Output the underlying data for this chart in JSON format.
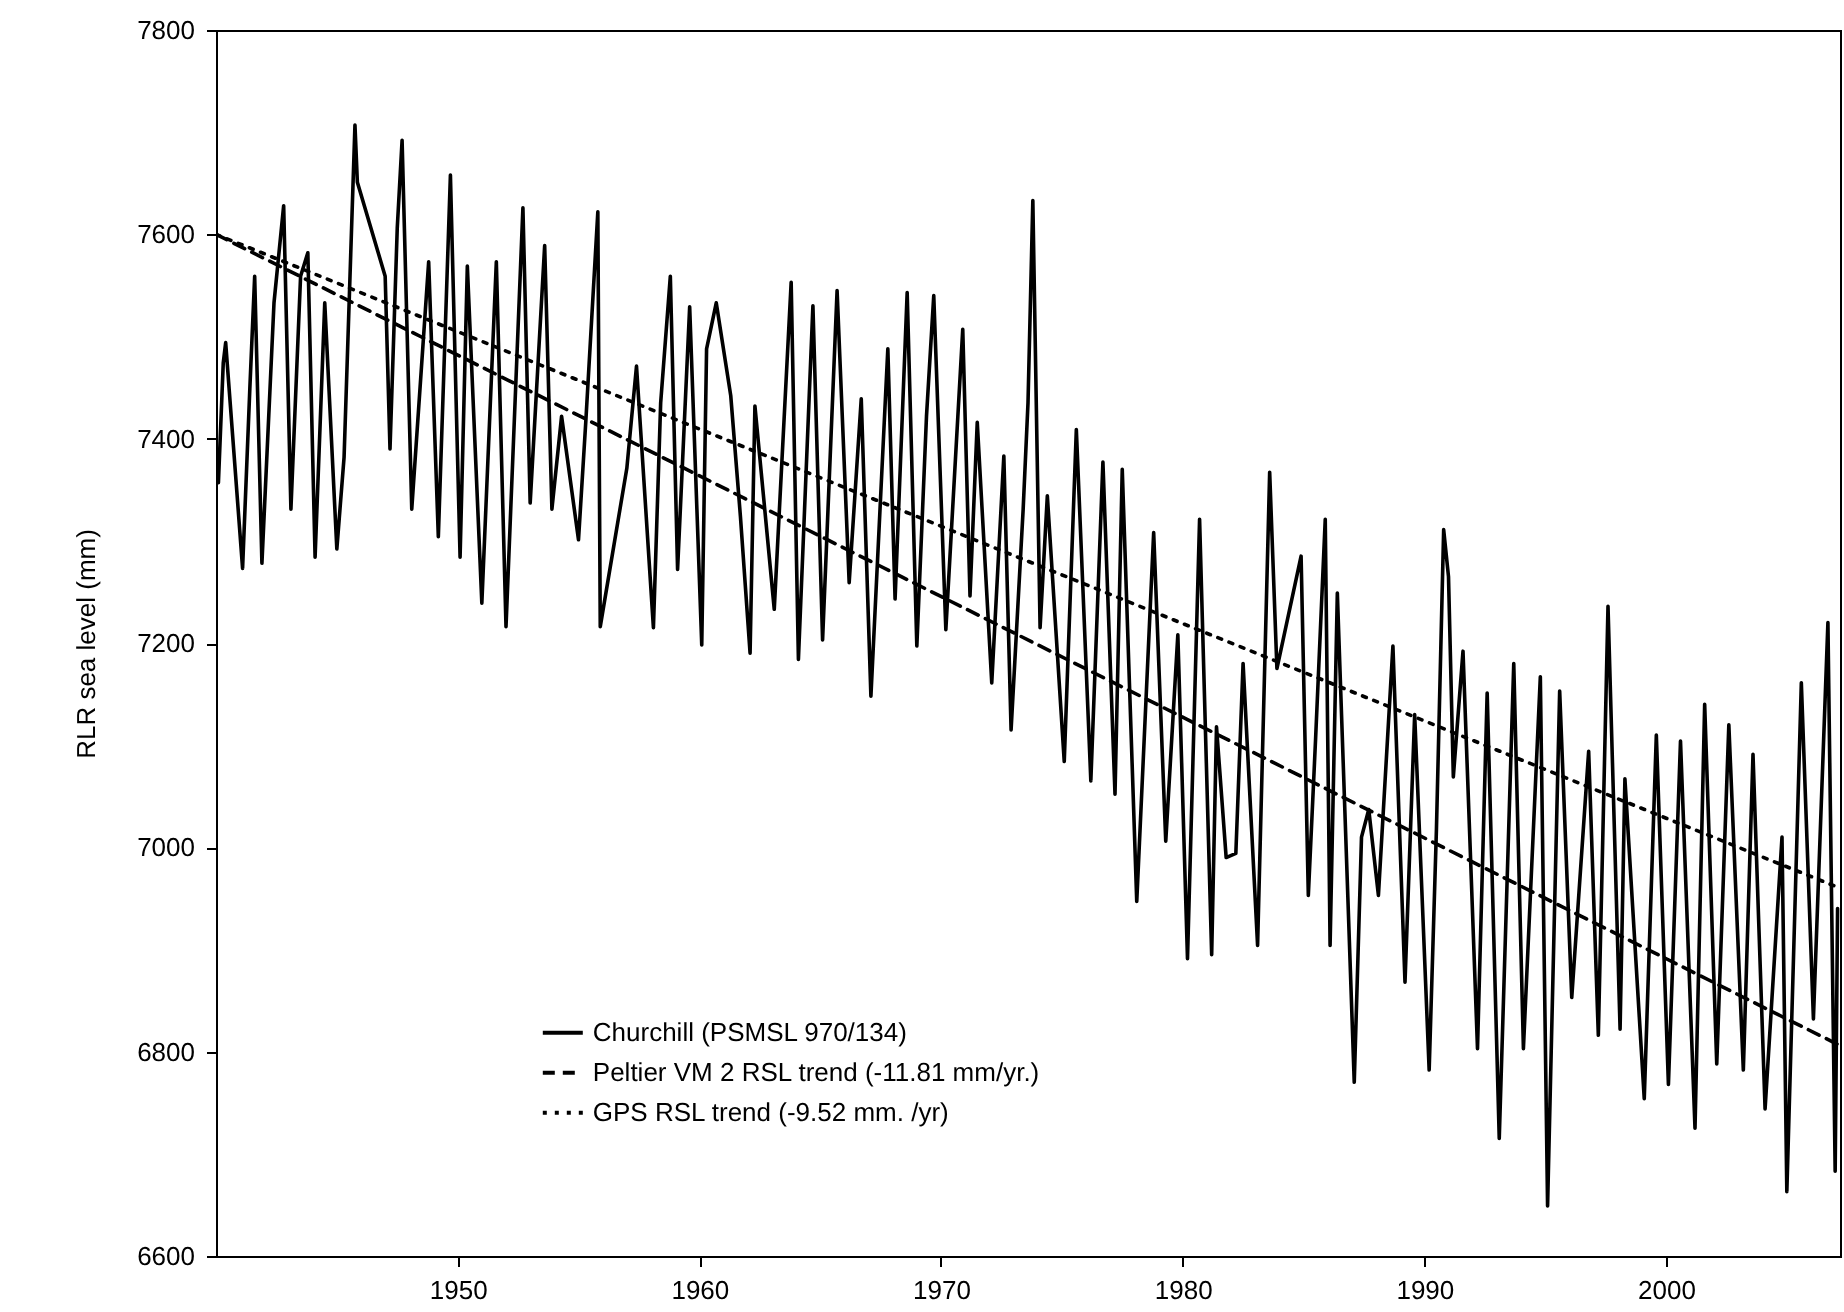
{
  "chart_data": {
    "type": "line",
    "ylabel": "RLR sea level (mm)",
    "xlim": [
      1940,
      2007.2
    ],
    "xticks": [
      1950,
      1960,
      1970,
      1980,
      1990,
      2000
    ],
    "ylim": [
      6600,
      7800
    ],
    "yticks": [
      6600,
      6800,
      7000,
      7200,
      7400,
      7600,
      7800
    ],
    "legend": "bottom",
    "grid": false,
    "series": [
      {
        "name": "Churchill (PSMSL 970/134)",
        "color": "#000000",
        "line_style": "solid",
        "x": [
          1940.1,
          1940.3,
          1940.4,
          1941.1,
          1941.4,
          1941.6,
          1941.9,
          1942.4,
          1942.8,
          1943.1,
          1943.5,
          1943.8,
          1944.1,
          1944.5,
          1945.0,
          1945.3,
          1945.75,
          1945.85,
          1947.0,
          1947.2,
          1947.5,
          1947.7,
          1948.1,
          1948.8,
          1949.2,
          1949.7,
          1950.1,
          1950.4,
          1951.0,
          1951.6,
          1952.0,
          1952.7,
          1953.0,
          1953.6,
          1953.9,
          1954.3,
          1955.0,
          1955.3,
          1955.8,
          1955.9,
          1957.0,
          1957.4,
          1958.1,
          1958.4,
          1958.8,
          1959.1,
          1959.6,
          1960.1,
          1960.3,
          1960.7,
          1961.3,
          1961.7,
          1962.1,
          1962.3,
          1963.1,
          1963.8,
          1964.1,
          1964.7,
          1965.1,
          1965.7,
          1966.2,
          1966.7,
          1967.1,
          1967.8,
          1968.1,
          1968.6,
          1969.0,
          1969.4,
          1969.7,
          1970.2,
          1970.9,
          1971.2,
          1971.5,
          1972.1,
          1972.6,
          1972.9,
          1973.4,
          1973.6,
          1973.8,
          1974.1,
          1974.4,
          1975.1,
          1975.6,
          1976.2,
          1976.7,
          1977.2,
          1977.5,
          1978.1,
          1978.8,
          1979.3,
          1979.8,
          1980.2,
          1980.7,
          1981.2,
          1981.4,
          1981.8,
          1982.2,
          1982.5,
          1983.1,
          1983.6,
          1983.9,
          1984.9,
          1985.2,
          1985.5,
          1985.9,
          1986.1,
          1986.4,
          1987.1,
          1987.4,
          1987.7,
          1988.1,
          1988.7,
          1989.2,
          1989.6,
          1990.2,
          1990.5,
          1990.8,
          1991.0,
          1991.2,
          1991.6,
          1992.2,
          1992.6,
          1993.1,
          1993.7,
          1994.1,
          1994.8,
          1995.1,
          1995.6,
          1996.1,
          1996.8,
          1997.2,
          1997.6,
          1998.1,
          1998.3,
          1999.1,
          1999.6,
          2000.1,
          2000.6,
          2001.2,
          2001.6,
          2002.1,
          2002.6,
          2003.2,
          2003.6,
          2004.1,
          2004.8,
          2005.0,
          2005.6,
          2006.1,
          2006.7,
          2007.0,
          2007.1
        ],
        "values": [
          7357,
          7474,
          7494,
          7273,
          7449,
          7559,
          7278,
          7533,
          7628,
          7331,
          7559,
          7582,
          7284,
          7533,
          7292,
          7382,
          7707,
          7651,
          7559,
          7390,
          7606,
          7692,
          7331,
          7573,
          7304,
          7658,
          7284,
          7569,
          7239,
          7573,
          7216,
          7626,
          7337,
          7589,
          7331,
          7422,
          7301,
          7416,
          7622,
          7216,
          7371,
          7471,
          7215,
          7435,
          7559,
          7272,
          7529,
          7198,
          7488,
          7533,
          7442,
          7324,
          7190,
          7432,
          7233,
          7553,
          7184,
          7530,
          7203,
          7545,
          7259,
          7439,
          7148,
          7488,
          7243,
          7543,
          7197,
          7422,
          7540,
          7213,
          7507,
          7246,
          7416,
          7161,
          7383,
          7115,
          7331,
          7435,
          7633,
          7215,
          7344,
          7084,
          7409,
          7065,
          7377,
          7052,
          7370,
          6947,
          7308,
          7006,
          7208,
          6891,
          7321,
          6895,
          7118,
          6990,
          6994,
          7180,
          6904,
          7367,
          7175,
          7285,
          6953,
          7106,
          7321,
          6904,
          7249,
          6770,
          7010,
          7037,
          6953,
          7197,
          6868,
          7130,
          6782,
          7017,
          7311,
          7265,
          7069,
          7192,
          6803,
          7151,
          6715,
          7180,
          6803,
          7167,
          6649,
          7153,
          6853,
          7094,
          6816,
          7236,
          6822,
          7067,
          6754,
          7110,
          6768,
          7104,
          6725,
          7140,
          6788,
          7120,
          6782,
          7091,
          6744,
          7010,
          6663,
          7161,
          6832,
          7220,
          6683,
          6940
        ]
      },
      {
        "name": "Peltier VM 2 RSL trend (-11.81 mm/yr.)",
        "color": "#000000",
        "line_style": "dashed",
        "x": [
          1940,
          2007.2
        ],
        "values": [
          7600,
          6806
        ]
      },
      {
        "name": "GPS RSL trend (-9.52 mm. /yr)",
        "color": "#000000",
        "line_style": "dotted",
        "x": [
          1940,
          2007.2
        ],
        "values": [
          7600,
          6960
        ]
      }
    ]
  }
}
